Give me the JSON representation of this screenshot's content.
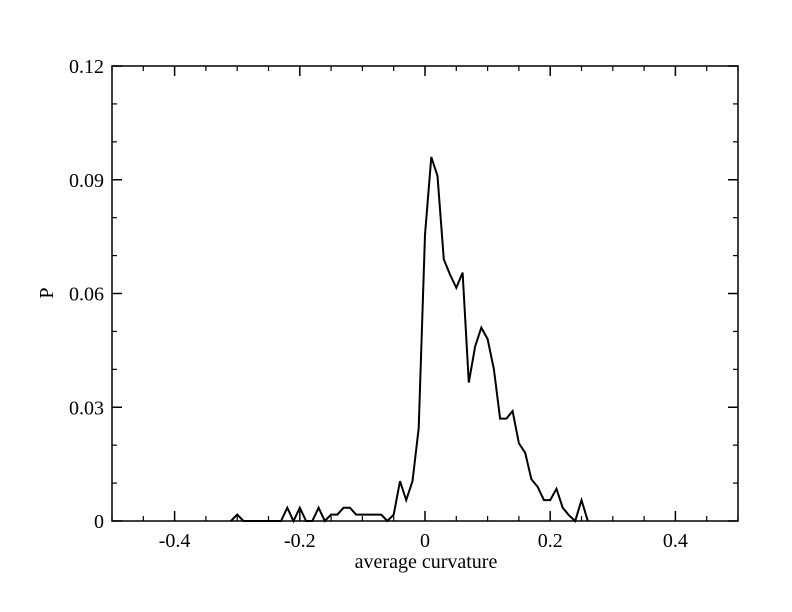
{
  "chart_data": {
    "type": "line",
    "title": "",
    "xlabel": "average curvature",
    "ylabel": "P",
    "xlim": [
      -0.5,
      0.5
    ],
    "ylim": [
      0,
      0.12
    ],
    "xticks": [
      -0.4,
      -0.2,
      0,
      0.2,
      0.4
    ],
    "xtick_labels": [
      "-0.4",
      "-0.2",
      "0",
      "0.2",
      "0.4"
    ],
    "yticks": [
      0,
      0.03,
      0.06,
      0.09,
      0.12
    ],
    "ytick_labels": [
      "0",
      "0.03",
      "0.06",
      "0.09",
      "0.12"
    ],
    "grid": false,
    "legend": "none",
    "line_color": "#000000",
    "series": [
      {
        "x": [
          -0.31,
          -0.3,
          -0.29,
          -0.23,
          -0.22,
          -0.21,
          -0.2,
          -0.19,
          -0.18,
          -0.17,
          -0.16,
          -0.15,
          -0.14,
          -0.13,
          -0.12,
          -0.11,
          -0.1,
          -0.09,
          -0.08,
          -0.07,
          -0.06,
          -0.05,
          -0.04,
          -0.03,
          -0.02,
          -0.01,
          0.0,
          0.01,
          0.02,
          0.03,
          0.04,
          0.05,
          0.06,
          0.07,
          0.08,
          0.09,
          0.1,
          0.11,
          0.12,
          0.13,
          0.14,
          0.15,
          0.16,
          0.17,
          0.18,
          0.19,
          0.2,
          0.21,
          0.22,
          0.23,
          0.24,
          0.25,
          0.26
        ],
        "y": [
          0.0,
          0.0017,
          0.0,
          0.0,
          0.0035,
          0.0,
          0.0035,
          0.0,
          0.0,
          0.0035,
          0.0,
          0.0017,
          0.0017,
          0.0035,
          0.0035,
          0.0017,
          0.0017,
          0.0017,
          0.0017,
          0.0017,
          0.0,
          0.0017,
          0.0105,
          0.0055,
          0.0105,
          0.0245,
          0.0755,
          0.096,
          0.091,
          0.069,
          0.065,
          0.0615,
          0.0655,
          0.0365,
          0.046,
          0.051,
          0.048,
          0.04,
          0.027,
          0.027,
          0.029,
          0.0205,
          0.018,
          0.011,
          0.009,
          0.0055,
          0.0055,
          0.0085,
          0.0035,
          0.0015,
          0.0,
          0.0055,
          0.0
        ]
      }
    ]
  }
}
